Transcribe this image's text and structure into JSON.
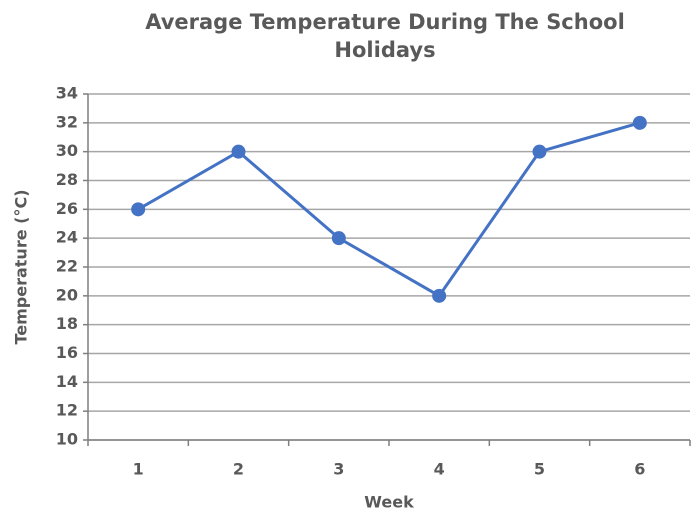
{
  "chart_data": {
    "type": "line",
    "title": "Average Temperature During The School Holidays",
    "xlabel": "Week",
    "ylabel": "Temperature (°C)",
    "categories": [
      "1",
      "2",
      "3",
      "4",
      "5",
      "6"
    ],
    "series": [
      {
        "name": "Temperature",
        "color": "#4472c4",
        "values": [
          26,
          30,
          24,
          20,
          30,
          32
        ]
      }
    ],
    "ylim": [
      10,
      34
    ],
    "yticks": [
      10,
      12,
      14,
      16,
      18,
      20,
      22,
      24,
      26,
      28,
      30,
      32,
      34
    ],
    "grid": true
  }
}
